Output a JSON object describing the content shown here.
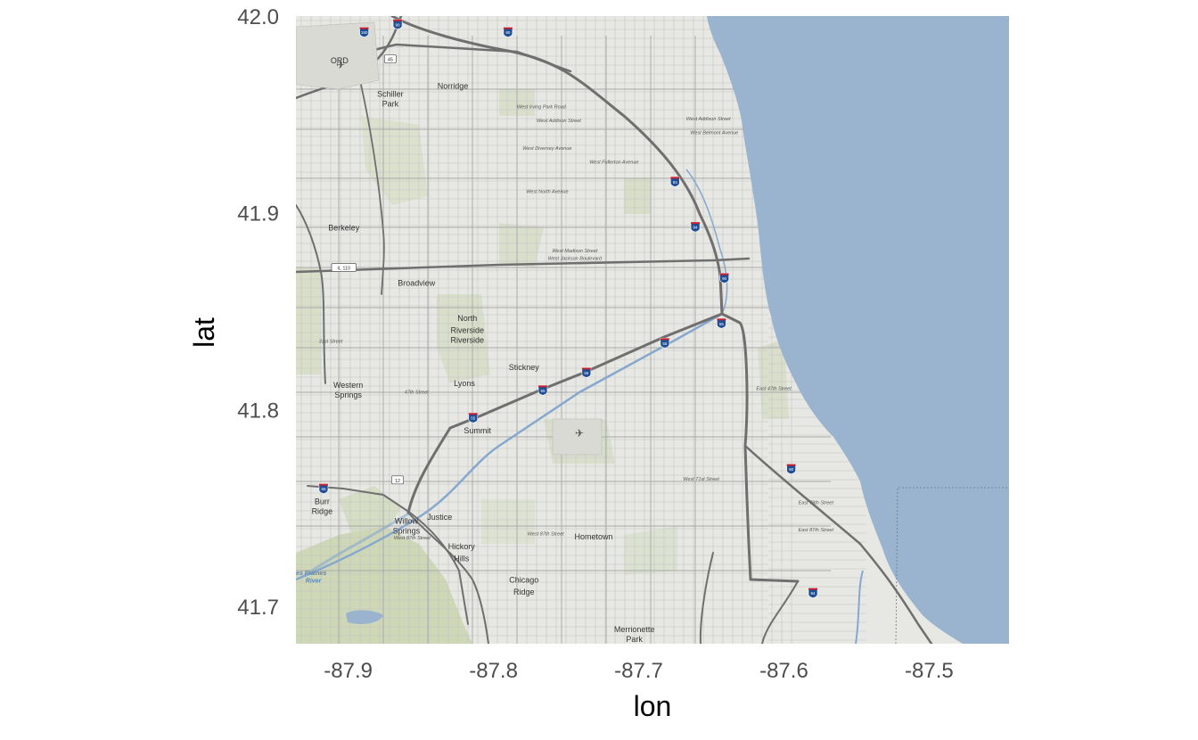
{
  "map": {
    "x_axis": {
      "title": "lon",
      "ticks": [
        -87.9,
        -87.8,
        -87.7,
        -87.6,
        -87.5
      ],
      "range": [
        -87.936,
        -87.445
      ]
    },
    "y_axis": {
      "title": "lat",
      "ticks": [
        42.0,
        41.9,
        41.8,
        41.7
      ],
      "range": [
        41.681,
        42.0
      ]
    },
    "colors": {
      "water": "#9ab3cf",
      "land": "#e7e8e3",
      "park": "#c9d4ae",
      "road": "#6f6f6f",
      "grid": "#c4c4c4"
    },
    "places": [
      {
        "name": "ORD",
        "lon": -87.906,
        "lat": 41.976
      },
      {
        "name": "Schiller",
        "lon": -87.871,
        "lat": 41.959
      },
      {
        "name": "Park",
        "lon": -87.871,
        "lat": 41.954
      },
      {
        "name": "Norridge",
        "lon": -87.828,
        "lat": 41.963
      },
      {
        "name": "Berkeley",
        "lon": -87.903,
        "lat": 41.891
      },
      {
        "name": "Broadview",
        "lon": -87.853,
        "lat": 41.863
      },
      {
        "name": "North",
        "lon": -87.818,
        "lat": 41.845
      },
      {
        "name": "Riverside",
        "lon": -87.818,
        "lat": 41.839
      },
      {
        "name": "Riverside",
        "lon": -87.818,
        "lat": 41.834
      },
      {
        "name": "Stickney",
        "lon": -87.779,
        "lat": 41.82
      },
      {
        "name": "Lyons",
        "lon": -87.82,
        "lat": 41.812
      },
      {
        "name": "Western",
        "lon": -87.9,
        "lat": 41.811
      },
      {
        "name": "Springs",
        "lon": -87.9,
        "lat": 41.806
      },
      {
        "name": "Summit",
        "lon": -87.811,
        "lat": 41.788
      },
      {
        "name": "Burr",
        "lon": -87.918,
        "lat": 41.752
      },
      {
        "name": "Ridge",
        "lon": -87.918,
        "lat": 41.747
      },
      {
        "name": "Willow",
        "lon": -87.86,
        "lat": 41.742
      },
      {
        "name": "Springs",
        "lon": -87.86,
        "lat": 41.737
      },
      {
        "name": "Justice",
        "lon": -87.837,
        "lat": 41.744
      },
      {
        "name": "Hometown",
        "lon": -87.731,
        "lat": 41.734
      },
      {
        "name": "Hickory",
        "lon": -87.822,
        "lat": 41.729
      },
      {
        "name": "Hills",
        "lon": -87.822,
        "lat": 41.723
      },
      {
        "name": "Chicago",
        "lon": -87.779,
        "lat": 41.712
      },
      {
        "name": "Ridge",
        "lon": -87.779,
        "lat": 41.706
      },
      {
        "name": "Merrionette",
        "lon": -87.703,
        "lat": 41.687
      },
      {
        "name": "Park",
        "lon": -87.703,
        "lat": 41.682
      }
    ],
    "streets": [
      {
        "name": "West Irving Park Road",
        "lon": -87.767,
        "lat": 41.953
      },
      {
        "name": "West Addison Street",
        "lon": -87.755,
        "lat": 41.946
      },
      {
        "name": "West Diversey Avenue",
        "lon": -87.763,
        "lat": 41.932
      },
      {
        "name": "West Fullerton Avenue",
        "lon": -87.717,
        "lat": 41.925
      },
      {
        "name": "West North Avenue",
        "lon": -87.763,
        "lat": 41.91
      },
      {
        "name": "West Addison Street",
        "lon": -87.652,
        "lat": 41.947
      },
      {
        "name": "West Belmont Avenue",
        "lon": -87.648,
        "lat": 41.94
      },
      {
        "name": "West Madison Street",
        "lon": -87.744,
        "lat": 41.88
      },
      {
        "name": "West Jackson Boulevard",
        "lon": -87.744,
        "lat": 41.876
      },
      {
        "name": "31st Street",
        "lon": -87.912,
        "lat": 41.834
      },
      {
        "name": "47th Street",
        "lon": -87.853,
        "lat": 41.808
      },
      {
        "name": "East 47th Street",
        "lon": -87.607,
        "lat": 41.81
      },
      {
        "name": "West 71st Street",
        "lon": -87.657,
        "lat": 41.764
      },
      {
        "name": "East 79th Street",
        "lon": -87.578,
        "lat": 41.752
      },
      {
        "name": "East 87th Street",
        "lon": -87.578,
        "lat": 41.738
      },
      {
        "name": "West 87th Street",
        "lon": -87.764,
        "lat": 41.736
      },
      {
        "name": "West 87th Street",
        "lon": -87.856,
        "lat": 41.734
      }
    ],
    "highways": [
      {
        "name": "90",
        "lon": -87.866,
        "lat": 41.996
      },
      {
        "name": "190",
        "lon": -87.889,
        "lat": 41.992
      },
      {
        "name": "90",
        "lon": -87.79,
        "lat": 41.992
      },
      {
        "name": "94",
        "lon": -87.675,
        "lat": 41.916
      },
      {
        "name": "94",
        "lon": -87.661,
        "lat": 41.893
      },
      {
        "name": "90",
        "lon": -87.641,
        "lat": 41.867
      },
      {
        "name": "55",
        "lon": -87.643,
        "lat": 41.844
      },
      {
        "name": "55",
        "lon": -87.682,
        "lat": 41.834
      },
      {
        "name": "55",
        "lon": -87.736,
        "lat": 41.819
      },
      {
        "name": "55",
        "lon": -87.766,
        "lat": 41.81
      },
      {
        "name": "55",
        "lon": -87.814,
        "lat": 41.796
      },
      {
        "name": "90",
        "lon": -87.595,
        "lat": 41.77
      },
      {
        "name": "55",
        "lon": -87.917,
        "lat": 41.76
      },
      {
        "name": "94",
        "lon": -87.58,
        "lat": 41.707
      }
    ],
    "shields": [
      {
        "name": "IL 110",
        "lon": -87.903,
        "lat": 41.872
      },
      {
        "name": "12",
        "lon": -87.866,
        "lat": 41.764
      },
      {
        "name": "45",
        "lon": -87.871,
        "lat": 41.978
      }
    ],
    "water_labels": [
      {
        "name": "Des Plaines",
        "lon": -87.927,
        "lat": 41.716
      },
      {
        "name": "River",
        "lon": -87.924,
        "lat": 41.712
      }
    ]
  }
}
